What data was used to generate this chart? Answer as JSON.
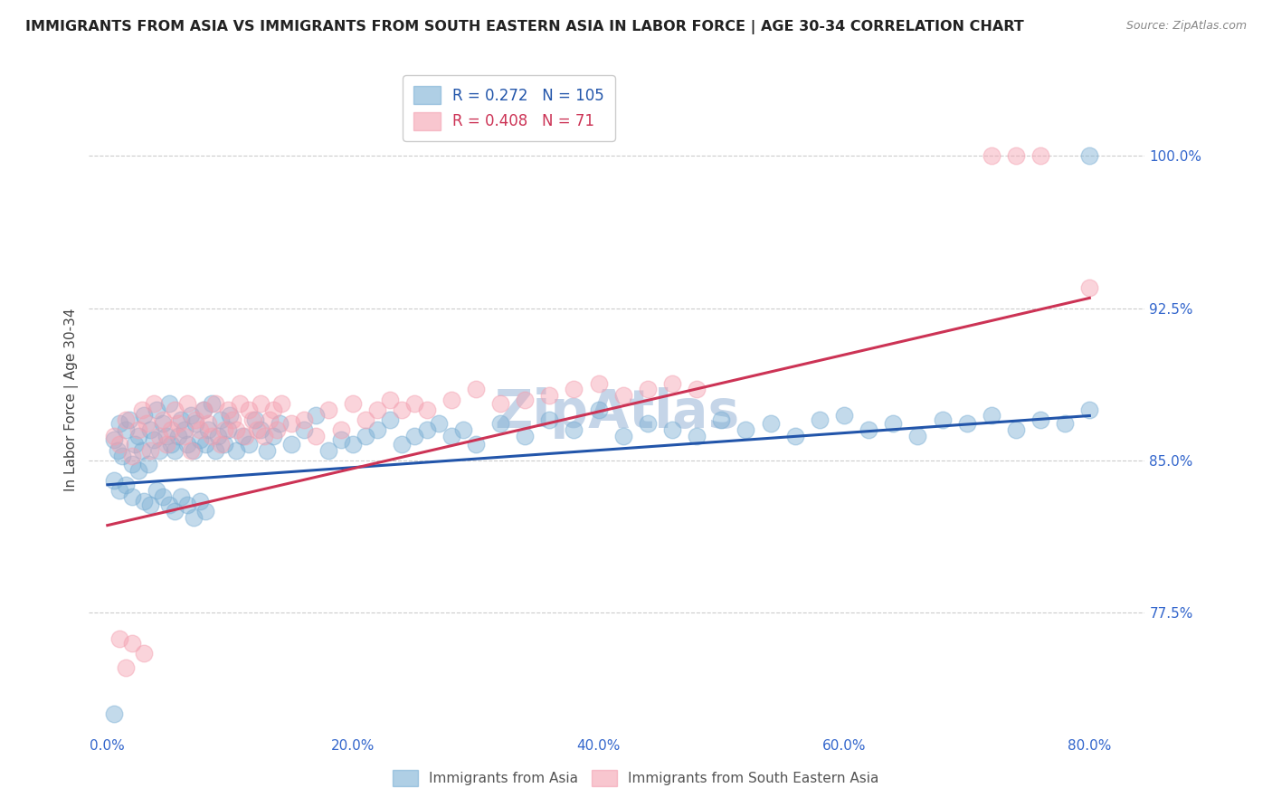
{
  "title": "IMMIGRANTS FROM ASIA VS IMMIGRANTS FROM SOUTH EASTERN ASIA IN LABOR FORCE | AGE 30-34 CORRELATION CHART",
  "source": "Source: ZipAtlas.com",
  "ylabel": "In Labor Force | Age 30-34",
  "legend_labels": [
    "Immigrants from Asia",
    "Immigrants from South Eastern Asia"
  ],
  "legend_R": [
    0.272,
    0.408
  ],
  "legend_N": [
    105,
    71
  ],
  "blue_color": "#7BAFD4",
  "pink_color": "#F4A0B0",
  "trend_blue": "#2255AA",
  "trend_pink": "#CC3355",
  "watermark": "ZipAtlas",
  "ytick_labels": [
    "77.5%",
    "85.0%",
    "92.5%",
    "100.0%"
  ],
  "ytick_values": [
    0.775,
    0.85,
    0.925,
    1.0
  ],
  "xtick_labels": [
    "0.0%",
    "20.0%",
    "40.0%",
    "60.0%",
    "80.0%"
  ],
  "xtick_values": [
    0.0,
    0.2,
    0.4,
    0.6,
    0.8
  ],
  "xmin": -0.015,
  "xmax": 0.845,
  "ymin": 0.715,
  "ymax": 1.045,
  "blue_trend_x": [
    0.0,
    0.8
  ],
  "blue_trend_y": [
    0.838,
    0.872
  ],
  "pink_trend_x": [
    0.0,
    0.8
  ],
  "pink_trend_y": [
    0.818,
    0.93
  ],
  "blue_scatter_x": [
    0.005,
    0.008,
    0.01,
    0.012,
    0.015,
    0.018,
    0.02,
    0.022,
    0.025,
    0.028,
    0.03,
    0.033,
    0.035,
    0.038,
    0.04,
    0.042,
    0.045,
    0.048,
    0.05,
    0.052,
    0.055,
    0.058,
    0.06,
    0.063,
    0.065,
    0.068,
    0.07,
    0.072,
    0.075,
    0.078,
    0.08,
    0.082,
    0.085,
    0.088,
    0.09,
    0.092,
    0.095,
    0.098,
    0.1,
    0.105,
    0.11,
    0.115,
    0.12,
    0.125,
    0.13,
    0.135,
    0.14,
    0.15,
    0.16,
    0.17,
    0.18,
    0.19,
    0.2,
    0.21,
    0.22,
    0.23,
    0.24,
    0.25,
    0.26,
    0.27,
    0.28,
    0.29,
    0.3,
    0.32,
    0.34,
    0.36,
    0.38,
    0.4,
    0.42,
    0.44,
    0.46,
    0.48,
    0.5,
    0.52,
    0.54,
    0.56,
    0.58,
    0.6,
    0.62,
    0.64,
    0.66,
    0.68,
    0.7,
    0.72,
    0.74,
    0.76,
    0.78,
    0.8,
    0.005,
    0.01,
    0.015,
    0.02,
    0.025,
    0.03,
    0.035,
    0.04,
    0.045,
    0.05,
    0.055,
    0.06,
    0.065,
    0.07,
    0.075,
    0.08,
    0.005,
    0.8
  ],
  "blue_scatter_y": [
    0.86,
    0.855,
    0.868,
    0.852,
    0.865,
    0.87,
    0.848,
    0.858,
    0.862,
    0.855,
    0.872,
    0.848,
    0.865,
    0.86,
    0.875,
    0.855,
    0.868,
    0.862,
    0.878,
    0.858,
    0.855,
    0.862,
    0.87,
    0.865,
    0.858,
    0.872,
    0.855,
    0.868,
    0.86,
    0.875,
    0.858,
    0.865,
    0.878,
    0.855,
    0.862,
    0.87,
    0.858,
    0.865,
    0.872,
    0.855,
    0.862,
    0.858,
    0.87,
    0.865,
    0.855,
    0.862,
    0.868,
    0.858,
    0.865,
    0.872,
    0.855,
    0.86,
    0.858,
    0.862,
    0.865,
    0.87,
    0.858,
    0.862,
    0.865,
    0.868,
    0.862,
    0.865,
    0.858,
    0.868,
    0.862,
    0.87,
    0.865,
    0.875,
    0.862,
    0.868,
    0.865,
    0.862,
    0.87,
    0.865,
    0.868,
    0.862,
    0.87,
    0.872,
    0.865,
    0.868,
    0.862,
    0.87,
    0.868,
    0.872,
    0.865,
    0.87,
    0.868,
    0.875,
    0.84,
    0.835,
    0.838,
    0.832,
    0.845,
    0.83,
    0.828,
    0.835,
    0.832,
    0.828,
    0.825,
    0.832,
    0.828,
    0.822,
    0.83,
    0.825,
    0.725,
    1.0
  ],
  "pink_scatter_x": [
    0.005,
    0.01,
    0.015,
    0.02,
    0.025,
    0.028,
    0.032,
    0.035,
    0.038,
    0.042,
    0.045,
    0.048,
    0.052,
    0.055,
    0.058,
    0.062,
    0.065,
    0.068,
    0.072,
    0.075,
    0.078,
    0.082,
    0.085,
    0.088,
    0.092,
    0.095,
    0.098,
    0.102,
    0.105,
    0.108,
    0.112,
    0.115,
    0.118,
    0.122,
    0.125,
    0.128,
    0.132,
    0.135,
    0.138,
    0.142,
    0.15,
    0.16,
    0.17,
    0.18,
    0.19,
    0.2,
    0.21,
    0.22,
    0.23,
    0.24,
    0.25,
    0.26,
    0.28,
    0.3,
    0.32,
    0.34,
    0.36,
    0.38,
    0.4,
    0.42,
    0.44,
    0.46,
    0.48,
    0.72,
    0.74,
    0.76,
    0.8,
    0.01,
    0.015,
    0.02,
    0.03
  ],
  "pink_scatter_y": [
    0.862,
    0.858,
    0.87,
    0.852,
    0.865,
    0.875,
    0.868,
    0.855,
    0.878,
    0.862,
    0.87,
    0.858,
    0.865,
    0.875,
    0.868,
    0.862,
    0.878,
    0.855,
    0.87,
    0.865,
    0.875,
    0.868,
    0.862,
    0.878,
    0.858,
    0.865,
    0.875,
    0.87,
    0.865,
    0.878,
    0.862,
    0.875,
    0.87,
    0.865,
    0.878,
    0.862,
    0.87,
    0.875,
    0.865,
    0.878,
    0.868,
    0.87,
    0.862,
    0.875,
    0.865,
    0.878,
    0.87,
    0.875,
    0.88,
    0.875,
    0.878,
    0.875,
    0.88,
    0.885,
    0.878,
    0.88,
    0.882,
    0.885,
    0.888,
    0.882,
    0.885,
    0.888,
    0.885,
    1.0,
    1.0,
    1.0,
    0.935,
    0.762,
    0.748,
    0.76,
    0.755
  ],
  "background_color": "#ffffff",
  "grid_color": "#cccccc",
  "axis_color": "#aaaaaa",
  "title_fontsize": 11.5,
  "label_fontsize": 11,
  "tick_fontsize": 11,
  "tick_color": "#3366CC",
  "watermark_color": "#C5D5E8",
  "watermark_fontsize": 42
}
